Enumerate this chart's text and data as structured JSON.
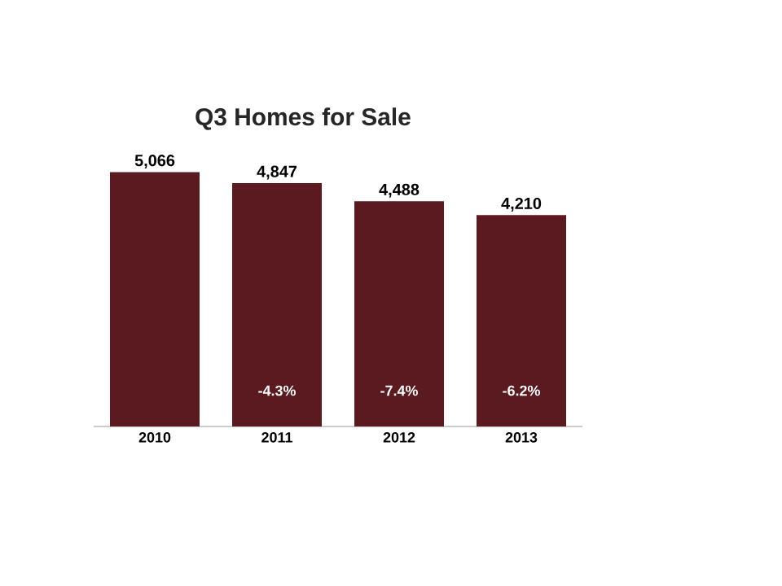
{
  "chart_data": {
    "type": "bar",
    "title": "Q3 Homes for Sale",
    "categories": [
      "2010",
      "2011",
      "2012",
      "2013"
    ],
    "values": [
      5066,
      4847,
      4488,
      4210
    ],
    "value_labels": [
      "5,066",
      "4,847",
      "4,488",
      "4,210"
    ],
    "color": "#5a1a1f",
    "annotations": [
      "-4.3%",
      "-7.4%",
      "-6.2%"
    ]
  }
}
